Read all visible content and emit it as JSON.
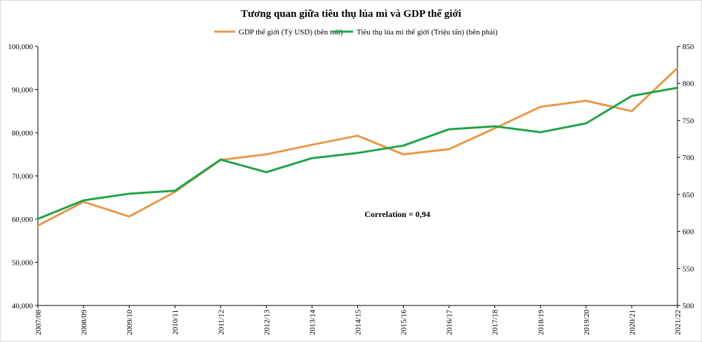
{
  "chart_data": {
    "type": "line",
    "title": "Tương quan giữa tiêu thụ lúa mì và GDP thế giới",
    "categories": [
      "2007/08",
      "2008/09",
      "2009/10",
      "2010/11",
      "2011/12",
      "2012/13",
      "2013/14",
      "2014/15",
      "2015/16",
      "2016/17",
      "2017/18",
      "2018/19",
      "2019/20",
      "2020/21",
      "2021/22"
    ],
    "series": [
      {
        "name": "GDP thế giới (Tỷ USD) (bên trái)",
        "axis": "left",
        "color": "#E8994A",
        "values": [
          58500,
          64000,
          60600,
          66300,
          73700,
          75000,
          77200,
          79300,
          75000,
          76200,
          81000,
          86000,
          87400,
          85000,
          95000
        ]
      },
      {
        "name": "Tiêu thụ lúa mì thế giới (Triệu tấn) (bên phải)",
        "axis": "right",
        "color": "#22A34A",
        "values": [
          617,
          642,
          651,
          655,
          697,
          680,
          699,
          706,
          716,
          738,
          742,
          734,
          746,
          783,
          794
        ]
      }
    ],
    "y_left": {
      "min": 40000,
      "max": 100000,
      "ticks": [
        "40,000",
        "50,000",
        "60,000",
        "70,000",
        "80,000",
        "90,000",
        "100,000"
      ]
    },
    "y_right": {
      "min": 500,
      "max": 850,
      "ticks": [
        "500",
        "550",
        "600",
        "650",
        "700",
        "750",
        "800",
        "850"
      ]
    },
    "grid": false,
    "legend_position": "top-center",
    "annotation": "Correlation = 0,94"
  }
}
